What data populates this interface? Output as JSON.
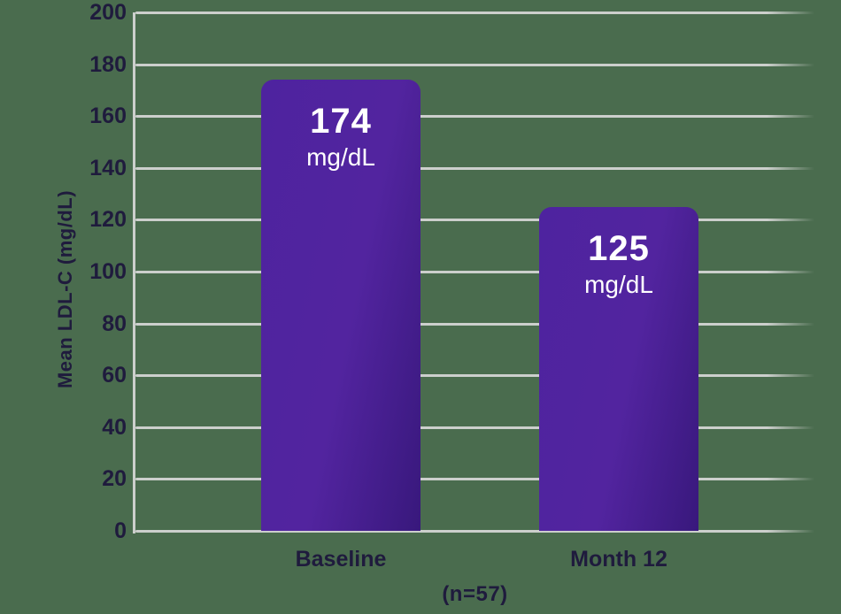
{
  "background_color": "#4a6c4e",
  "chart_data": {
    "type": "bar",
    "title": "",
    "ylabel": "Mean LDL-C (mg/dL)",
    "xlabel": "(n=57)",
    "ylim": [
      0,
      200
    ],
    "yticks": [
      0,
      20,
      40,
      60,
      80,
      100,
      120,
      140,
      160,
      180,
      200
    ],
    "grid": true,
    "legend": "none",
    "categories": [
      "Baseline",
      "Month 12"
    ],
    "values": [
      174,
      125
    ],
    "value_unit": "mg/dL",
    "bar_labels": [
      {
        "value": "174",
        "unit": "mg/dL"
      },
      {
        "value": "125",
        "unit": "mg/dL"
      }
    ],
    "colors": {
      "bar_gradient_start": "#4e239f",
      "bar_gradient_mid": "#52249f",
      "bar_gradient_end": "#38187c",
      "bar_value_text": "#ffffff",
      "grid_and_axis": "#cccfcc",
      "tick_label_text": "#1f1b3d"
    }
  }
}
